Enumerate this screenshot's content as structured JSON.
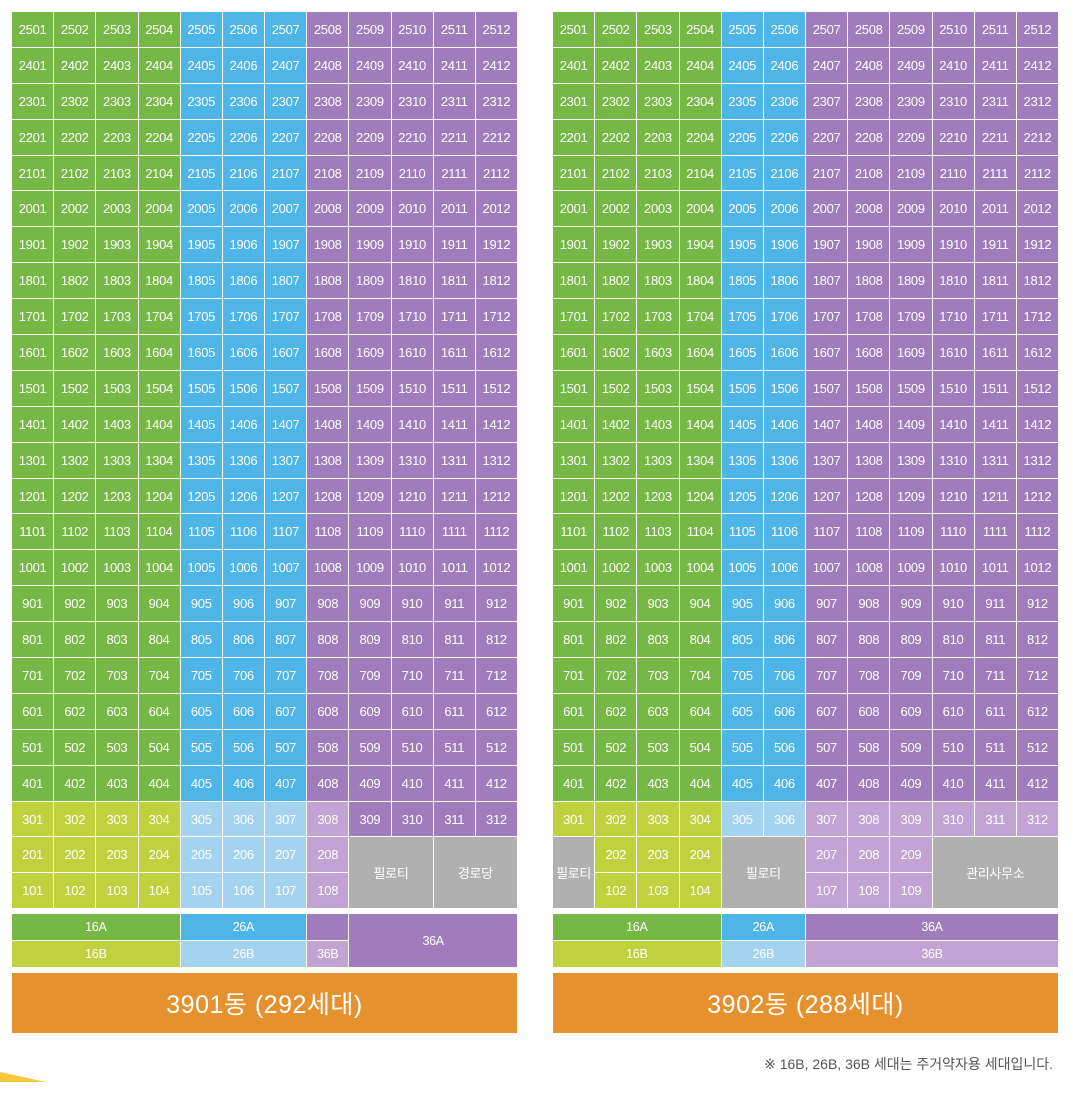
{
  "colors": {
    "green": "#76b845",
    "blue": "#4db5e8",
    "purple": "#a07cbc",
    "lime": "#bfd23d",
    "lightblue": "#a4d3ef",
    "lightpurple": "#c3a3d3",
    "gray": "#b0b0b0",
    "orange": "#e5922e",
    "corner": "#f6c63e"
  },
  "buildings": [
    {
      "id": "3901",
      "title": "3901동 (292세대)",
      "col_types": [
        "A16",
        "A16",
        "A16",
        "A16",
        "A26",
        "A26",
        "A26",
        "A36",
        "A36",
        "A36",
        "A36",
        "A36"
      ],
      "col_types_low": [
        "B16",
        "B16",
        "B16",
        "B16",
        "B26",
        "B26",
        "B26",
        "B36",
        "A36",
        "A36",
        "A36",
        "A36"
      ],
      "floors": [
        25,
        24,
        23,
        22,
        21,
        20,
        19,
        18,
        17,
        16,
        15,
        14,
        13,
        12,
        11,
        10,
        9,
        8,
        7,
        6,
        5,
        4,
        3
      ],
      "low_floor_cells": [
        {
          "label": "201",
          "col": 1,
          "row": 1,
          "span_r": 1,
          "span_c": 1,
          "type": "B16"
        },
        {
          "label": "202",
          "col": 2,
          "row": 1,
          "span_r": 1,
          "span_c": 1,
          "type": "B16"
        },
        {
          "label": "203",
          "col": 3,
          "row": 1,
          "span_r": 1,
          "span_c": 1,
          "type": "B16"
        },
        {
          "label": "204",
          "col": 4,
          "row": 1,
          "span_r": 1,
          "span_c": 1,
          "type": "B16"
        },
        {
          "label": "205",
          "col": 5,
          "row": 1,
          "span_r": 1,
          "span_c": 1,
          "type": "B26"
        },
        {
          "label": "206",
          "col": 6,
          "row": 1,
          "span_r": 1,
          "span_c": 1,
          "type": "B26"
        },
        {
          "label": "207",
          "col": 7,
          "row": 1,
          "span_r": 1,
          "span_c": 1,
          "type": "B26"
        },
        {
          "label": "208",
          "col": 8,
          "row": 1,
          "span_r": 1,
          "span_c": 1,
          "type": "B36"
        },
        {
          "label": "필로티",
          "col": 9,
          "row": 1,
          "span_r": 2,
          "span_c": 2,
          "type": "gray"
        },
        {
          "label": "경로당",
          "col": 11,
          "row": 1,
          "span_r": 2,
          "span_c": 2,
          "type": "gray"
        },
        {
          "label": "101",
          "col": 1,
          "row": 2,
          "span_r": 1,
          "span_c": 1,
          "type": "B16"
        },
        {
          "label": "102",
          "col": 2,
          "row": 2,
          "span_r": 1,
          "span_c": 1,
          "type": "B16"
        },
        {
          "label": "103",
          "col": 3,
          "row": 2,
          "span_r": 1,
          "span_c": 1,
          "type": "B16"
        },
        {
          "label": "104",
          "col": 4,
          "row": 2,
          "span_r": 1,
          "span_c": 1,
          "type": "B16"
        },
        {
          "label": "105",
          "col": 5,
          "row": 2,
          "span_r": 1,
          "span_c": 1,
          "type": "B26"
        },
        {
          "label": "106",
          "col": 6,
          "row": 2,
          "span_r": 1,
          "span_c": 1,
          "type": "B26"
        },
        {
          "label": "107",
          "col": 7,
          "row": 2,
          "span_r": 1,
          "span_c": 1,
          "type": "B26"
        },
        {
          "label": "108",
          "col": 8,
          "row": 2,
          "span_r": 1,
          "span_c": 1,
          "type": "B36"
        }
      ],
      "legend": [
        {
          "label": "16A",
          "col": 1,
          "row": 1,
          "span_c": 4,
          "span_r": 1,
          "type": "A16"
        },
        {
          "label": "26A",
          "col": 5,
          "row": 1,
          "span_c": 3,
          "span_r": 1,
          "type": "A26"
        },
        {
          "label": "",
          "col": 8,
          "row": 1,
          "span_c": 1,
          "span_r": 1,
          "type": "A36"
        },
        {
          "label": "36A",
          "col": 9,
          "row": 1,
          "span_c": 4,
          "span_r": 2,
          "type": "A36"
        },
        {
          "label": "16B",
          "col": 1,
          "row": 2,
          "span_c": 4,
          "span_r": 1,
          "type": "B16"
        },
        {
          "label": "26B",
          "col": 5,
          "row": 2,
          "span_c": 3,
          "span_r": 1,
          "type": "B26"
        },
        {
          "label": "36B",
          "col": 8,
          "row": 2,
          "span_c": 1,
          "span_r": 1,
          "type": "B36"
        }
      ]
    },
    {
      "id": "3902",
      "title": "3902동 (288세대)",
      "col_types": [
        "A16",
        "A16",
        "A16",
        "A16",
        "A26",
        "A26",
        "A36",
        "A36",
        "A36",
        "A36",
        "A36",
        "A36"
      ],
      "col_types_low": [
        "B16",
        "B16",
        "B16",
        "B16",
        "B26",
        "B26",
        "B36",
        "B36",
        "B36",
        "B36",
        "B36",
        "B36"
      ],
      "floors": [
        25,
        24,
        23,
        22,
        21,
        20,
        19,
        18,
        17,
        16,
        15,
        14,
        13,
        12,
        11,
        10,
        9,
        8,
        7,
        6,
        5,
        4,
        3
      ],
      "low_floor_cells": [
        {
          "label": "필로티",
          "col": 1,
          "row": 1,
          "span_r": 2,
          "span_c": 1,
          "type": "gray"
        },
        {
          "label": "202",
          "col": 2,
          "row": 1,
          "span_r": 1,
          "span_c": 1,
          "type": "B16"
        },
        {
          "label": "203",
          "col": 3,
          "row": 1,
          "span_r": 1,
          "span_c": 1,
          "type": "B16"
        },
        {
          "label": "204",
          "col": 4,
          "row": 1,
          "span_r": 1,
          "span_c": 1,
          "type": "B16"
        },
        {
          "label": "필로티",
          "col": 5,
          "row": 1,
          "span_r": 2,
          "span_c": 2,
          "type": "gray"
        },
        {
          "label": "207",
          "col": 7,
          "row": 1,
          "span_r": 1,
          "span_c": 1,
          "type": "B36"
        },
        {
          "label": "208",
          "col": 8,
          "row": 1,
          "span_r": 1,
          "span_c": 1,
          "type": "B36"
        },
        {
          "label": "209",
          "col": 9,
          "row": 1,
          "span_r": 1,
          "span_c": 1,
          "type": "B36"
        },
        {
          "label": "관리사무소",
          "col": 10,
          "row": 1,
          "span_r": 2,
          "span_c": 3,
          "type": "gray"
        },
        {
          "label": "102",
          "col": 2,
          "row": 2,
          "span_r": 1,
          "span_c": 1,
          "type": "B16"
        },
        {
          "label": "103",
          "col": 3,
          "row": 2,
          "span_r": 1,
          "span_c": 1,
          "type": "B16"
        },
        {
          "label": "104",
          "col": 4,
          "row": 2,
          "span_r": 1,
          "span_c": 1,
          "type": "B16"
        },
        {
          "label": "107",
          "col": 7,
          "row": 2,
          "span_r": 1,
          "span_c": 1,
          "type": "B36"
        },
        {
          "label": "108",
          "col": 8,
          "row": 2,
          "span_r": 1,
          "span_c": 1,
          "type": "B36"
        },
        {
          "label": "109",
          "col": 9,
          "row": 2,
          "span_r": 1,
          "span_c": 1,
          "type": "B36"
        }
      ],
      "legend": [
        {
          "label": "16A",
          "col": 1,
          "row": 1,
          "span_c": 4,
          "span_r": 1,
          "type": "A16"
        },
        {
          "label": "26A",
          "col": 5,
          "row": 1,
          "span_c": 2,
          "span_r": 1,
          "type": "A26"
        },
        {
          "label": "36A",
          "col": 7,
          "row": 1,
          "span_c": 6,
          "span_r": 1,
          "type": "A36"
        },
        {
          "label": "16B",
          "col": 1,
          "row": 2,
          "span_c": 4,
          "span_r": 1,
          "type": "B16"
        },
        {
          "label": "26B",
          "col": 5,
          "row": 2,
          "span_c": 2,
          "span_r": 1,
          "type": "B26"
        },
        {
          "label": "36B",
          "col": 7,
          "row": 2,
          "span_c": 6,
          "span_r": 1,
          "type": "B36"
        }
      ]
    }
  ],
  "footnote": "※ 16B, 26B, 36B 세대는 주거약자용 세대입니다."
}
